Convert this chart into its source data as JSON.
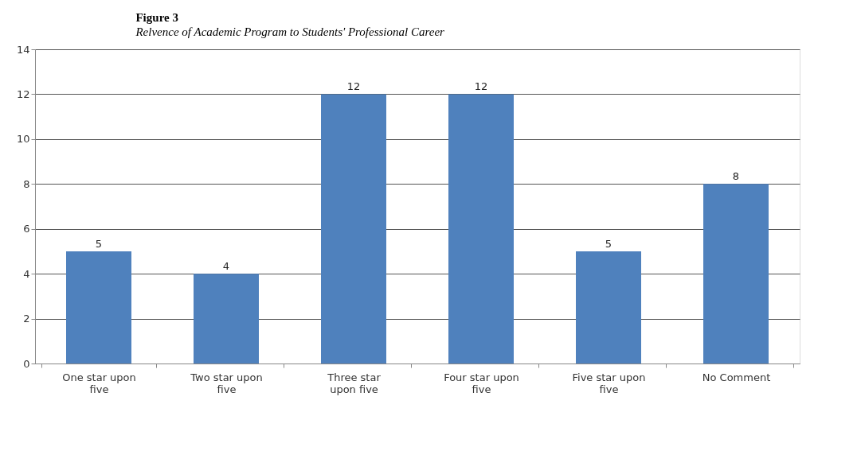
{
  "chart_data": {
    "type": "bar",
    "title": "Figure 3",
    "subtitle": "Relvence of Academic Program to Students' Professional Career",
    "categories": [
      "One star upon five",
      "Two star upon five",
      "Three star upon five",
      "Four star upon five",
      "Five star upon five",
      "No Comment"
    ],
    "values": [
      5,
      4,
      12,
      12,
      5,
      8
    ],
    "color": "#4f81bd",
    "ylim": [
      0,
      14
    ],
    "yticks": [
      0,
      2,
      4,
      6,
      8,
      10,
      12,
      14
    ],
    "grid": "y",
    "data_labels": true
  }
}
